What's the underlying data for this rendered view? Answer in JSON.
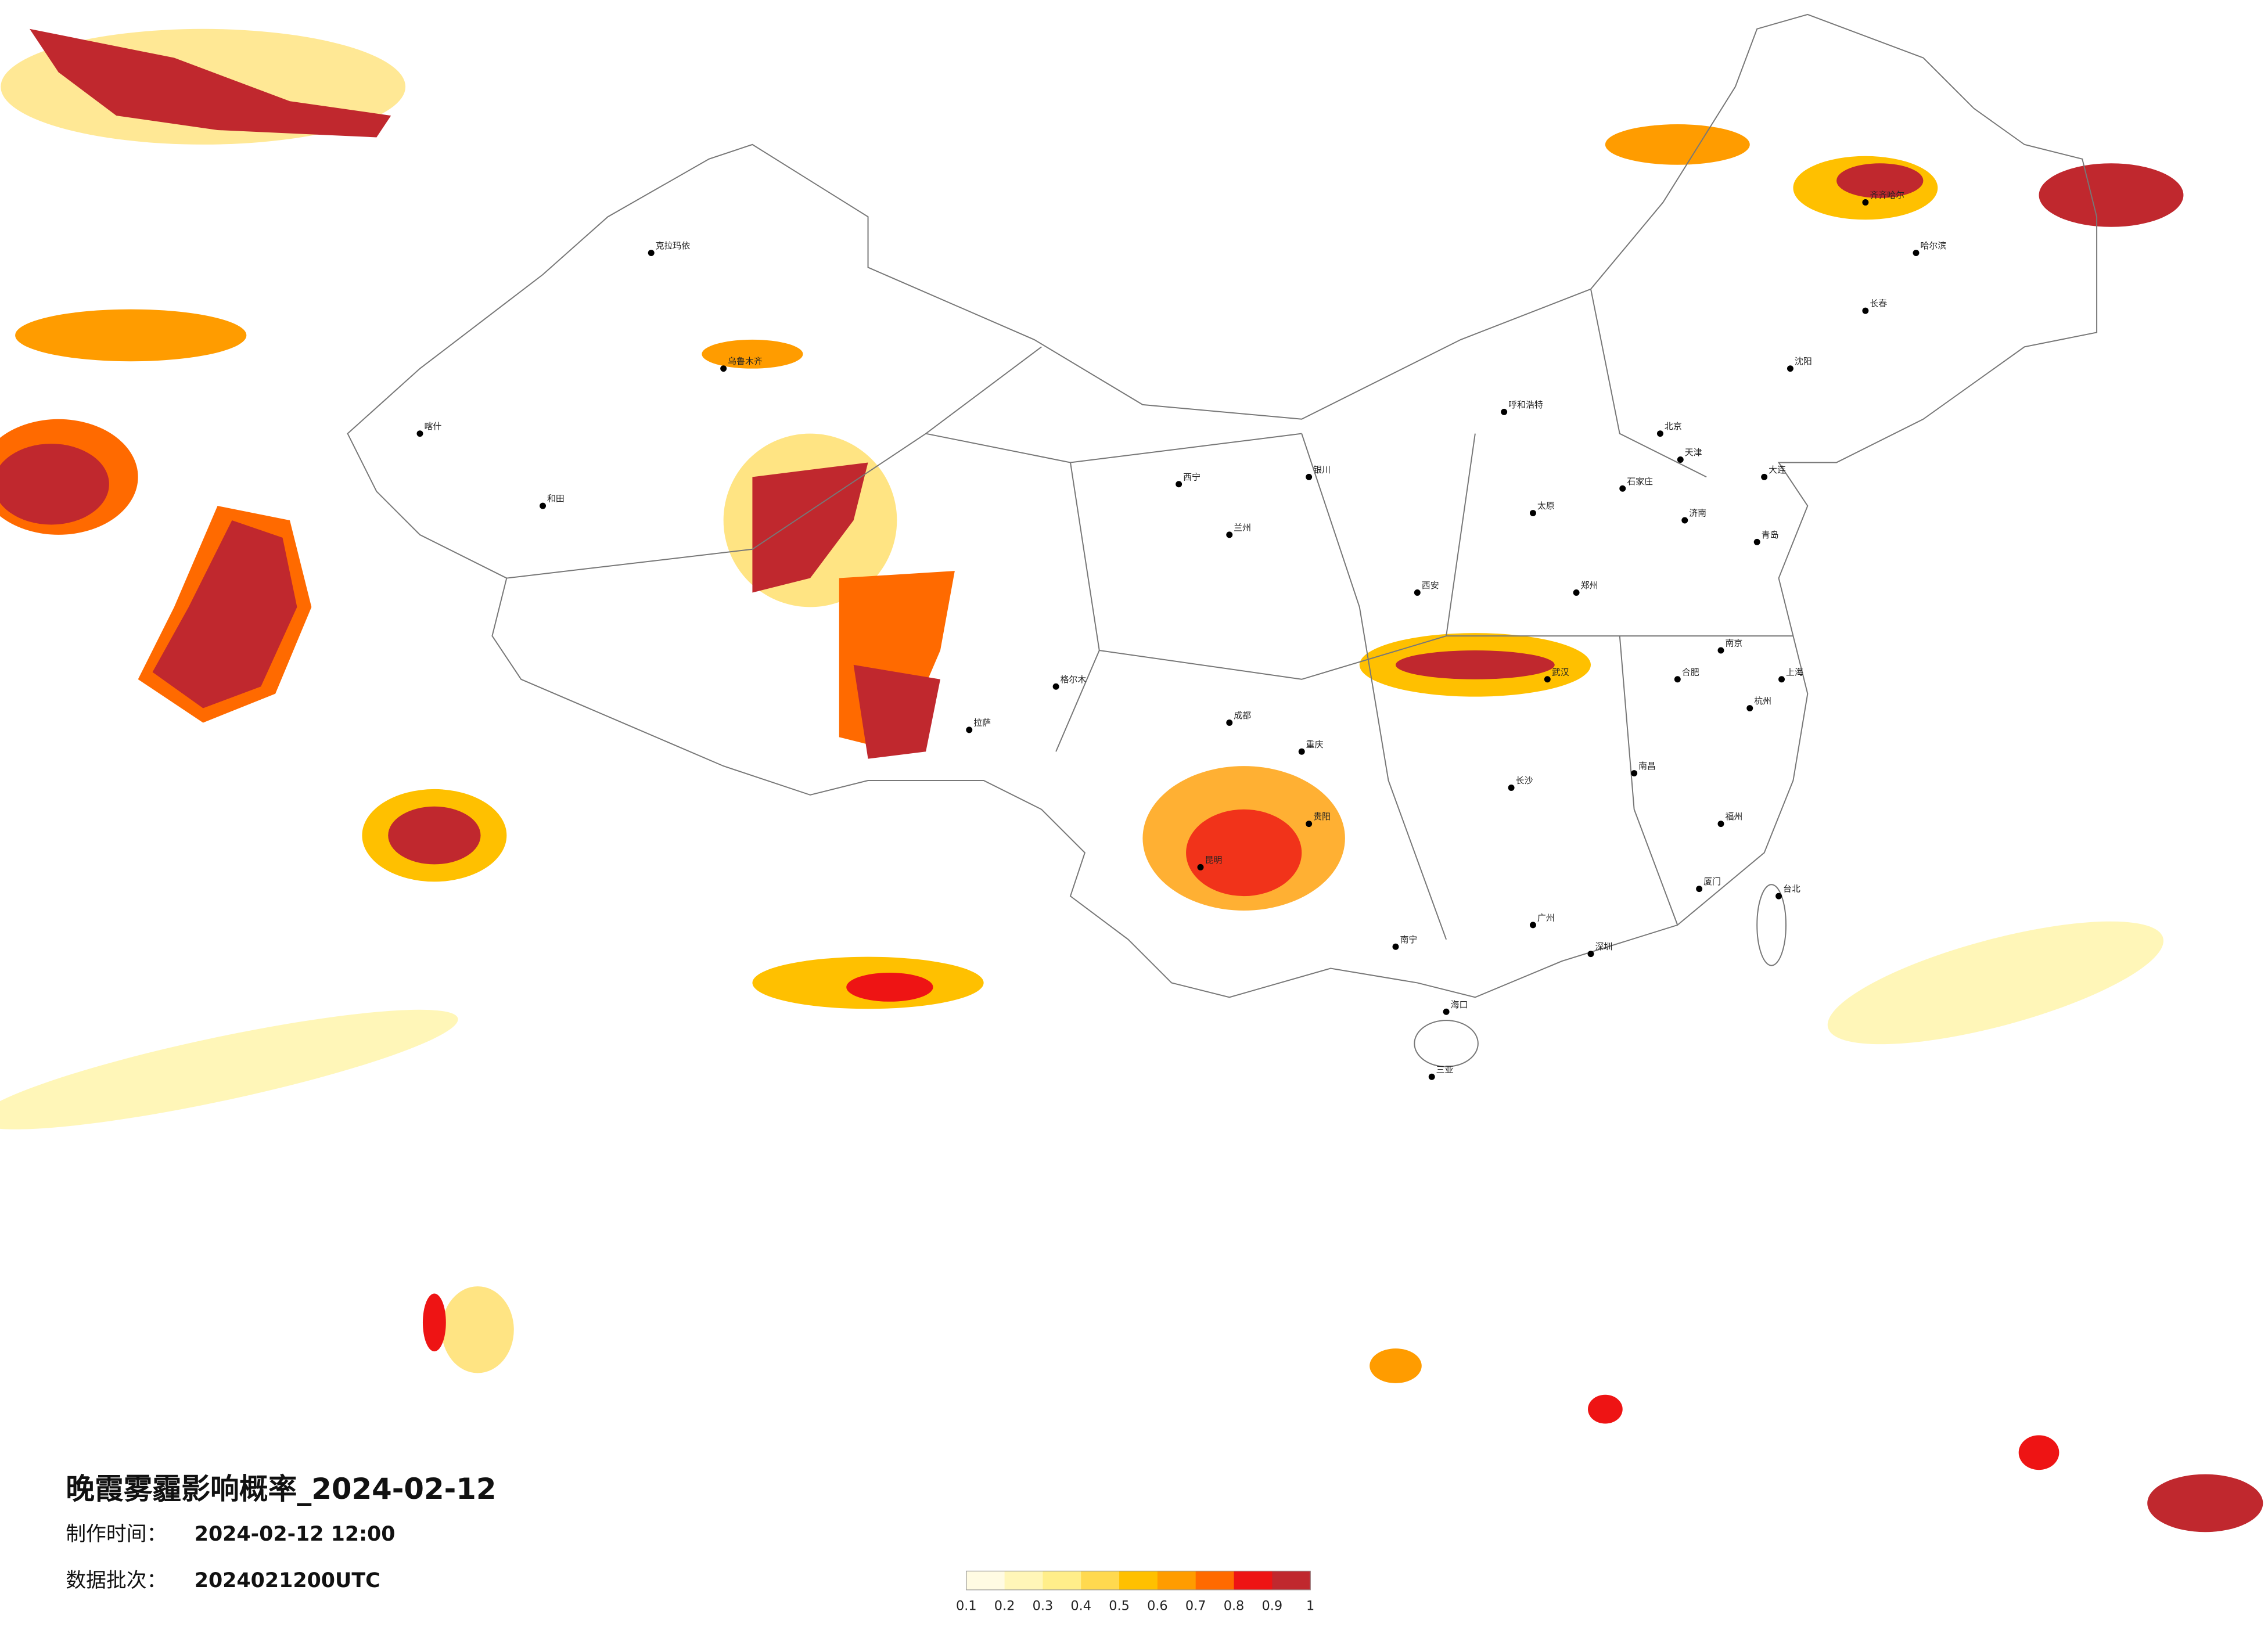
{
  "header": {
    "title": "晚霞雾霾影响概率_2024-02-12",
    "made_label": "制作时间：",
    "made_time": "2024-02-12 12:00",
    "batch_label": "数据批次：",
    "batch": "2024021200UTC"
  },
  "legend": {
    "ticks": [
      0.1,
      0.2,
      0.3,
      0.4,
      0.5,
      0.6,
      0.7,
      0.8,
      0.9,
      1
    ],
    "colors": [
      "#fffbe3",
      "#fff6b8",
      "#ffee8a",
      "#ffd94f",
      "#ffc000",
      "#ff9c00",
      "#ff6a00",
      "#ee1414",
      "#c0282e"
    ]
  },
  "cities": [
    "北京",
    "天津",
    "石家庄",
    "太原",
    "呼和浩特",
    "沈阳",
    "长春",
    "哈尔滨",
    "上海",
    "南京",
    "杭州",
    "合肥",
    "福州",
    "南昌",
    "济南",
    "郑州",
    "武汉",
    "长沙",
    "广州",
    "南宁",
    "海口",
    "成都",
    "重庆",
    "贵阳",
    "昆明",
    "拉萨",
    "西安",
    "兰州",
    "西宁",
    "银川",
    "乌鲁木齐",
    "大连",
    "青岛",
    "厦门",
    "深圳",
    "三亚",
    "齐齐哈尔",
    "克拉玛依",
    "喀什",
    "和田",
    "格尔木",
    "台北"
  ]
}
